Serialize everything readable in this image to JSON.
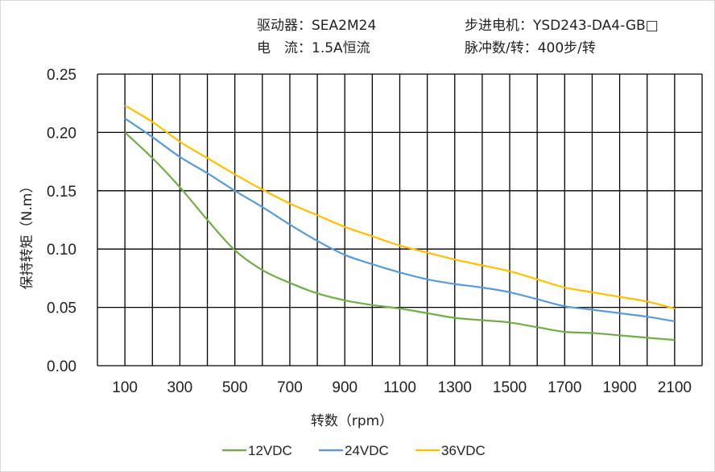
{
  "header": {
    "driver": "驱动器：SEA2M24",
    "motor": "步进电机：YSD243-DA4-GB□",
    "current": "电　流：1.5A恒流",
    "pulses": "脉冲数/转：400步/转"
  },
  "chart_data": {
    "type": "line",
    "title": "",
    "xlabel": "转数（rpm）",
    "ylabel": "保持转矩（N.m）",
    "x": [
      100,
      200,
      300,
      400,
      500,
      600,
      700,
      800,
      900,
      1000,
      1100,
      1200,
      1300,
      1400,
      1500,
      1600,
      1700,
      1800,
      1900,
      2000,
      2100
    ],
    "xlim": [
      0,
      2200
    ],
    "ylim": [
      0,
      0.25
    ],
    "xticks": [
      "100",
      "300",
      "500",
      "700",
      "900",
      "1100",
      "1300",
      "1500",
      "1700",
      "1900",
      "2100"
    ],
    "yticks": [
      "0.00",
      "0.05",
      "0.10",
      "0.15",
      "0.20",
      "0.25"
    ],
    "grid": true,
    "legend": "bottom",
    "series": [
      {
        "name": "12VDC",
        "color": "#70ad47",
        "values": [
          0.2,
          0.178,
          0.153,
          0.125,
          0.099,
          0.082,
          0.071,
          0.062,
          0.056,
          0.052,
          0.049,
          0.045,
          0.041,
          0.039,
          0.037,
          0.033,
          0.029,
          0.028,
          0.026,
          0.024,
          0.022
        ]
      },
      {
        "name": "24VDC",
        "color": "#5b9bd5",
        "values": [
          0.212,
          0.196,
          0.179,
          0.165,
          0.15,
          0.136,
          0.121,
          0.107,
          0.095,
          0.087,
          0.08,
          0.074,
          0.07,
          0.067,
          0.063,
          0.057,
          0.051,
          0.048,
          0.045,
          0.042,
          0.038
        ]
      },
      {
        "name": "36VDC",
        "color": "#ffc000",
        "values": [
          0.223,
          0.209,
          0.192,
          0.178,
          0.164,
          0.151,
          0.139,
          0.129,
          0.119,
          0.111,
          0.103,
          0.097,
          0.091,
          0.086,
          0.081,
          0.074,
          0.067,
          0.063,
          0.059,
          0.055,
          0.049
        ]
      }
    ]
  }
}
